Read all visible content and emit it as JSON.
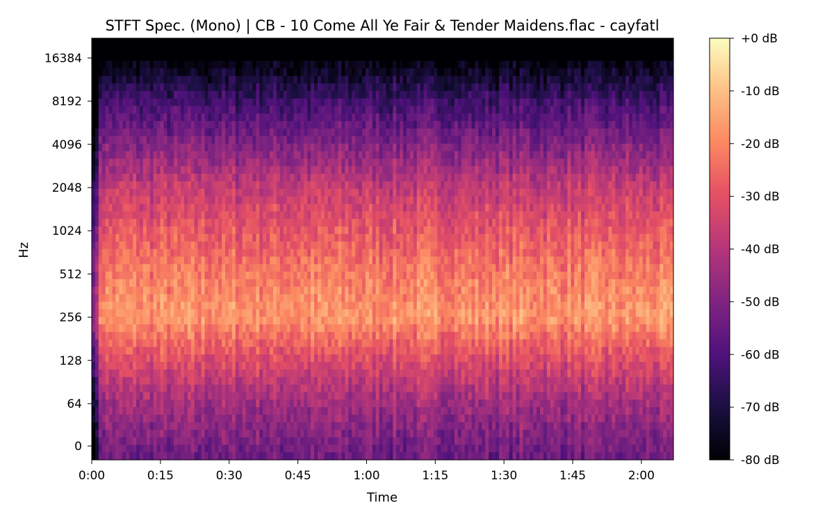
{
  "chart_data": {
    "type": "heatmap",
    "title": "STFT Spec. (Mono) | CB - 10 Come All Ye Fair & Tender Maidens.flac - cayfatl",
    "xlabel": "Time",
    "ylabel": "Hz",
    "x_scale": "time",
    "y_scale": "log2 (linear below 64 Hz)",
    "xlim_seconds": [
      0,
      127
    ],
    "ylim_hz": [
      0,
      22050
    ],
    "x_ticks": [
      "0:00",
      "0:15",
      "0:30",
      "0:45",
      "1:00",
      "1:15",
      "1:30",
      "1:45",
      "2:00"
    ],
    "x_tick_seconds": [
      0,
      15,
      30,
      45,
      60,
      75,
      90,
      105,
      120
    ],
    "y_ticks": [
      "0",
      "64",
      "128",
      "256",
      "512",
      "1024",
      "2048",
      "4096",
      "8192",
      "16384"
    ],
    "y_tick_hz": [
      0,
      64,
      128,
      256,
      512,
      1024,
      2048,
      4096,
      8192,
      16384
    ],
    "colormap": "magma",
    "colorbar": {
      "range_db": [
        -80,
        0
      ],
      "ticks": [
        "+0 dB",
        "-10 dB",
        "-20 dB",
        "-30 dB",
        "-40 dB",
        "-50 dB",
        "-60 dB",
        "-70 dB",
        "-80 dB"
      ],
      "tick_values": [
        0,
        -10,
        -20,
        -30,
        -40,
        -50,
        -60,
        -70,
        -80
      ]
    },
    "approx_band_levels": {
      "freq_hz": [
        0,
        64,
        128,
        256,
        512,
        1024,
        2048,
        4096,
        8192,
        16384,
        22050
      ],
      "level_db": [
        -52,
        -44,
        -32,
        -17,
        -22,
        -29,
        -37,
        -50,
        -63,
        -80,
        -80
      ]
    }
  }
}
